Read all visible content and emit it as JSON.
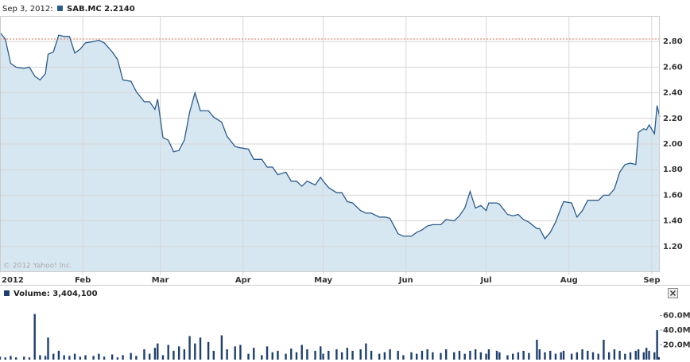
{
  "chart_data": [
    {
      "type": "line",
      "date_label": "Sep 3, 2012:",
      "series_label": "SAB.MC 2.2140",
      "copyright": "© 2012 Yahoo! Inc.",
      "color": "#2a5b8c",
      "fill": "#d7e7f2",
      "ref_line": 2.82,
      "ref_color": "#e0704c",
      "grid": true,
      "xlim": [
        1,
        248
      ],
      "ylim": [
        1.0,
        3.0
      ],
      "xticks": [
        {
          "value": 1,
          "label": "2012"
        },
        {
          "value": 32,
          "label": "Feb"
        },
        {
          "value": 61,
          "label": "Mar"
        },
        {
          "value": 92,
          "label": "Apr"
        },
        {
          "value": 122,
          "label": "May"
        },
        {
          "value": 153,
          "label": "Jun"
        },
        {
          "value": 183,
          "label": "Jul"
        },
        {
          "value": 214,
          "label": "Aug"
        },
        {
          "value": 245,
          "label": "Sep"
        }
      ],
      "yticks": [
        {
          "value": 1.2,
          "label": "1.20"
        },
        {
          "value": 1.4,
          "label": "1.40"
        },
        {
          "value": 1.6,
          "label": "1.60"
        },
        {
          "value": 1.8,
          "label": "1.80"
        },
        {
          "value": 2.0,
          "label": "2.00"
        },
        {
          "value": 2.2,
          "label": "2.20"
        },
        {
          "value": 2.4,
          "label": "2.40"
        },
        {
          "value": 2.6,
          "label": "2.60"
        },
        {
          "value": 2.8,
          "label": "2.80"
        }
      ],
      "x": [
        1,
        3,
        5,
        7,
        10,
        12,
        14,
        16,
        18,
        19,
        21,
        23,
        25,
        27,
        29,
        31,
        33,
        36,
        38,
        40,
        43,
        45,
        47,
        50,
        52,
        55,
        57,
        59,
        60,
        62,
        64,
        66,
        68,
        70,
        72,
        74,
        76,
        79,
        81,
        84,
        86,
        89,
        91,
        94,
        96,
        99,
        101,
        103,
        105,
        108,
        110,
        112,
        114,
        116,
        119,
        121,
        122,
        124,
        127,
        129,
        131,
        133,
        136,
        138,
        140,
        143,
        145,
        147,
        150,
        152,
        155,
        157,
        159,
        161,
        163,
        166,
        168,
        171,
        173,
        175,
        177,
        179,
        181,
        183,
        184,
        187,
        188,
        191,
        193,
        195,
        197,
        199,
        202,
        203,
        205,
        207,
        209,
        211,
        212,
        215,
        217,
        219,
        221,
        223,
        225,
        227,
        229,
        231,
        233,
        235,
        237,
        239,
        240,
        242,
        243,
        244,
        246,
        247,
        248
      ],
      "values": [
        2.87,
        2.82,
        2.63,
        2.6,
        2.59,
        2.6,
        2.53,
        2.5,
        2.55,
        2.7,
        2.72,
        2.85,
        2.84,
        2.84,
        2.71,
        2.74,
        2.79,
        2.8,
        2.81,
        2.79,
        2.72,
        2.66,
        2.5,
        2.49,
        2.41,
        2.33,
        2.33,
        2.27,
        2.35,
        2.05,
        2.03,
        1.94,
        1.95,
        2.03,
        2.25,
        2.4,
        2.26,
        2.26,
        2.21,
        2.17,
        2.06,
        1.98,
        1.97,
        1.96,
        1.88,
        1.88,
        1.82,
        1.82,
        1.76,
        1.78,
        1.71,
        1.71,
        1.67,
        1.71,
        1.68,
        1.74,
        1.71,
        1.66,
        1.62,
        1.62,
        1.55,
        1.54,
        1.48,
        1.46,
        1.46,
        1.43,
        1.43,
        1.42,
        1.3,
        1.28,
        1.28,
        1.31,
        1.33,
        1.36,
        1.37,
        1.37,
        1.41,
        1.4,
        1.44,
        1.5,
        1.63,
        1.5,
        1.52,
        1.48,
        1.54,
        1.54,
        1.53,
        1.45,
        1.44,
        1.45,
        1.41,
        1.39,
        1.34,
        1.34,
        1.26,
        1.31,
        1.39,
        1.5,
        1.55,
        1.54,
        1.43,
        1.48,
        1.56,
        1.56,
        1.56,
        1.6,
        1.6,
        1.65,
        1.78,
        1.84,
        1.85,
        1.84,
        2.09,
        2.12,
        2.11,
        2.15,
        2.08,
        2.3,
        2.21
      ]
    },
    {
      "type": "bar",
      "title": "Volume: 3,404,100",
      "color": "#1e3f6f",
      "xlim": [
        1,
        248
      ],
      "ylim": [
        0,
        80000000
      ],
      "yticks": [
        {
          "value": 20000000,
          "label": "20.0M"
        },
        {
          "value": 40000000,
          "label": "40.0M"
        },
        {
          "value": 60000000,
          "label": "60.0M"
        }
      ],
      "x": [
        1,
        3,
        5,
        7,
        10,
        12,
        14,
        16,
        18,
        19,
        21,
        23,
        25,
        27,
        29,
        31,
        33,
        36,
        38,
        40,
        43,
        45,
        47,
        50,
        52,
        55,
        57,
        59,
        60,
        62,
        64,
        66,
        68,
        70,
        72,
        74,
        76,
        79,
        81,
        84,
        86,
        89,
        91,
        94,
        96,
        99,
        101,
        103,
        105,
        108,
        110,
        112,
        114,
        116,
        119,
        121,
        122,
        124,
        127,
        129,
        131,
        133,
        136,
        138,
        140,
        143,
        145,
        147,
        150,
        152,
        155,
        157,
        159,
        161,
        163,
        166,
        168,
        171,
        173,
        175,
        177,
        179,
        181,
        183,
        184,
        187,
        188,
        191,
        193,
        195,
        197,
        199,
        202,
        203,
        205,
        207,
        209,
        211,
        212,
        215,
        217,
        219,
        221,
        223,
        225,
        227,
        229,
        231,
        233,
        235,
        237,
        239,
        240,
        242,
        243,
        244,
        246,
        247,
        248
      ],
      "values": [
        4000000,
        3000000,
        5000000,
        3000000,
        4000000,
        3000000,
        62000000,
        6000000,
        5000000,
        30000000,
        8000000,
        12000000,
        6000000,
        5000000,
        8000000,
        4000000,
        6000000,
        5000000,
        8000000,
        4000000,
        7000000,
        3000000,
        6000000,
        9000000,
        5000000,
        14000000,
        8000000,
        16000000,
        22000000,
        6000000,
        20000000,
        12000000,
        18000000,
        14000000,
        32000000,
        22000000,
        30000000,
        24000000,
        12000000,
        33000000,
        14000000,
        18000000,
        20000000,
        8000000,
        16000000,
        6000000,
        18000000,
        10000000,
        12000000,
        8000000,
        15000000,
        10000000,
        20000000,
        14000000,
        12000000,
        18000000,
        8000000,
        12000000,
        14000000,
        10000000,
        16000000,
        12000000,
        14000000,
        22000000,
        12000000,
        8000000,
        10000000,
        14000000,
        12000000,
        6000000,
        10000000,
        8000000,
        12000000,
        14000000,
        10000000,
        9000000,
        14000000,
        10000000,
        12000000,
        8000000,
        12000000,
        14000000,
        10000000,
        8000000,
        14000000,
        12000000,
        10000000,
        6000000,
        8000000,
        10000000,
        12000000,
        9000000,
        27000000,
        14000000,
        10000000,
        12000000,
        8000000,
        10000000,
        12000000,
        8000000,
        10000000,
        14000000,
        12000000,
        10000000,
        8000000,
        27000000,
        10000000,
        14000000,
        12000000,
        8000000,
        10000000,
        12000000,
        14000000,
        10000000,
        16000000,
        12000000,
        10000000,
        40000000,
        3404100
      ]
    }
  ]
}
